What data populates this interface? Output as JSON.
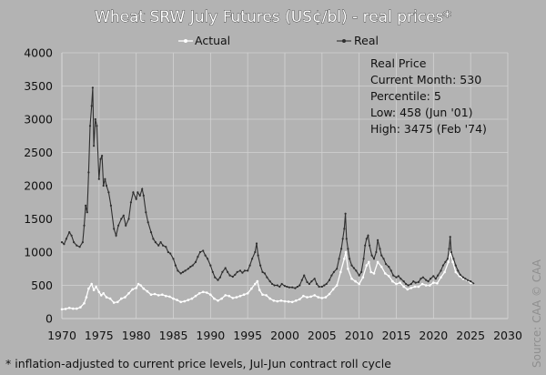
{
  "chart_data": {
    "type": "line",
    "title": "Wheat SRW July Futures (US¢/bl) - real prices*",
    "footnote": "* inflation-adjusted to current price levels, Jul-Jun contract roll cycle",
    "source": "Source: CAA  © CAA",
    "xlim": [
      1970,
      2030
    ],
    "ylim": [
      0,
      4000
    ],
    "x_ticks": [
      1970,
      1975,
      1980,
      1985,
      1990,
      1995,
      2000,
      2005,
      2010,
      2015,
      2020,
      2025,
      2030
    ],
    "y_ticks": [
      0,
      500,
      1000,
      1500,
      2000,
      2500,
      3000,
      3500,
      4000
    ],
    "grid": true,
    "legend_position": "top",
    "annotation": {
      "heading": "Real Price",
      "lines": [
        "Current Month: 530",
        "Percentile: 5",
        "Low: 458 (Jun '01)",
        "High: 3475 (Feb '74)"
      ]
    },
    "series": [
      {
        "name": "Actual",
        "color": "#ffffff",
        "points": [
          [
            1970.0,
            140
          ],
          [
            1970.5,
            145
          ],
          [
            1971.0,
            160
          ],
          [
            1971.5,
            150
          ],
          [
            1972.0,
            150
          ],
          [
            1972.5,
            170
          ],
          [
            1973.0,
            230
          ],
          [
            1973.3,
            320
          ],
          [
            1973.6,
            450
          ],
          [
            1974.0,
            520
          ],
          [
            1974.3,
            430
          ],
          [
            1974.6,
            480
          ],
          [
            1975.0,
            400
          ],
          [
            1975.3,
            350
          ],
          [
            1975.6,
            380
          ],
          [
            1976.0,
            320
          ],
          [
            1976.5,
            300
          ],
          [
            1977.0,
            240
          ],
          [
            1977.5,
            250
          ],
          [
            1978.0,
            300
          ],
          [
            1978.5,
            320
          ],
          [
            1979.0,
            380
          ],
          [
            1979.5,
            440
          ],
          [
            1980.0,
            460
          ],
          [
            1980.3,
            520
          ],
          [
            1980.6,
            500
          ],
          [
            1981.0,
            450
          ],
          [
            1981.5,
            410
          ],
          [
            1982.0,
            360
          ],
          [
            1982.5,
            370
          ],
          [
            1983.0,
            350
          ],
          [
            1983.5,
            360
          ],
          [
            1984.0,
            340
          ],
          [
            1984.5,
            330
          ],
          [
            1985.0,
            300
          ],
          [
            1985.5,
            280
          ],
          [
            1986.0,
            250
          ],
          [
            1986.5,
            260
          ],
          [
            1987.0,
            280
          ],
          [
            1987.5,
            300
          ],
          [
            1988.0,
            340
          ],
          [
            1988.5,
            380
          ],
          [
            1989.0,
            400
          ],
          [
            1989.5,
            390
          ],
          [
            1990.0,
            360
          ],
          [
            1990.5,
            300
          ],
          [
            1991.0,
            270
          ],
          [
            1991.5,
            300
          ],
          [
            1992.0,
            350
          ],
          [
            1992.5,
            340
          ],
          [
            1993.0,
            310
          ],
          [
            1993.5,
            320
          ],
          [
            1994.0,
            340
          ],
          [
            1994.5,
            360
          ],
          [
            1995.0,
            380
          ],
          [
            1995.5,
            450
          ],
          [
            1996.0,
            520
          ],
          [
            1996.3,
            560
          ],
          [
            1996.6,
            430
          ],
          [
            1997.0,
            360
          ],
          [
            1997.5,
            350
          ],
          [
            1998.0,
            300
          ],
          [
            1998.5,
            270
          ],
          [
            1999.0,
            260
          ],
          [
            1999.5,
            270
          ],
          [
            2000.0,
            260
          ],
          [
            2000.5,
            255
          ],
          [
            2001.0,
            250
          ],
          [
            2001.5,
            270
          ],
          [
            2002.0,
            290
          ],
          [
            2002.5,
            340
          ],
          [
            2003.0,
            320
          ],
          [
            2003.5,
            330
          ],
          [
            2004.0,
            350
          ],
          [
            2004.5,
            320
          ],
          [
            2005.0,
            310
          ],
          [
            2005.5,
            320
          ],
          [
            2006.0,
            370
          ],
          [
            2006.5,
            440
          ],
          [
            2007.0,
            500
          ],
          [
            2007.5,
            700
          ],
          [
            2008.0,
            900
          ],
          [
            2008.2,
            1000
          ],
          [
            2008.5,
            750
          ],
          [
            2009.0,
            600
          ],
          [
            2009.5,
            560
          ],
          [
            2010.0,
            520
          ],
          [
            2010.5,
            620
          ],
          [
            2011.0,
            800
          ],
          [
            2011.3,
            850
          ],
          [
            2011.6,
            700
          ],
          [
            2012.0,
            680
          ],
          [
            2012.5,
            850
          ],
          [
            2013.0,
            780
          ],
          [
            2013.5,
            680
          ],
          [
            2014.0,
            640
          ],
          [
            2014.5,
            560
          ],
          [
            2015.0,
            520
          ],
          [
            2015.5,
            540
          ],
          [
            2016.0,
            480
          ],
          [
            2016.5,
            440
          ],
          [
            2017.0,
            460
          ],
          [
            2017.5,
            480
          ],
          [
            2018.0,
            480
          ],
          [
            2018.5,
            520
          ],
          [
            2019.0,
            500
          ],
          [
            2019.5,
            500
          ],
          [
            2020.0,
            540
          ],
          [
            2020.5,
            530
          ],
          [
            2021.0,
            620
          ],
          [
            2021.5,
            700
          ],
          [
            2022.0,
            850
          ],
          [
            2022.3,
            1000
          ],
          [
            2022.6,
            850
          ],
          [
            2023.0,
            700
          ],
          [
            2023.5,
            640
          ],
          [
            2024.0,
            600
          ],
          [
            2024.5,
            580
          ],
          [
            2025.0,
            540
          ],
          [
            2025.4,
            530
          ]
        ]
      },
      {
        "name": "Real",
        "color": "#2f2f2f",
        "points": [
          [
            1970.0,
            1150
          ],
          [
            1970.3,
            1120
          ],
          [
            1970.6,
            1200
          ],
          [
            1971.0,
            1300
          ],
          [
            1971.3,
            1250
          ],
          [
            1971.6,
            1150
          ],
          [
            1972.0,
            1100
          ],
          [
            1972.4,
            1080
          ],
          [
            1972.8,
            1150
          ],
          [
            1973.0,
            1400
          ],
          [
            1973.2,
            1700
          ],
          [
            1973.4,
            1600
          ],
          [
            1973.6,
            2200
          ],
          [
            1973.8,
            2900
          ],
          [
            1974.0,
            3200
          ],
          [
            1974.15,
            3475
          ],
          [
            1974.3,
            2600
          ],
          [
            1974.5,
            3000
          ],
          [
            1974.7,
            2900
          ],
          [
            1975.0,
            2100
          ],
          [
            1975.2,
            2400
          ],
          [
            1975.4,
            2450
          ],
          [
            1975.6,
            2000
          ],
          [
            1975.8,
            2100
          ],
          [
            1976.0,
            2000
          ],
          [
            1976.3,
            1900
          ],
          [
            1976.6,
            1700
          ],
          [
            1977.0,
            1350
          ],
          [
            1977.3,
            1250
          ],
          [
            1977.6,
            1400
          ],
          [
            1978.0,
            1500
          ],
          [
            1978.3,
            1550
          ],
          [
            1978.6,
            1400
          ],
          [
            1979.0,
            1500
          ],
          [
            1979.3,
            1750
          ],
          [
            1979.6,
            1900
          ],
          [
            1980.0,
            1800
          ],
          [
            1980.2,
            1900
          ],
          [
            1980.5,
            1850
          ],
          [
            1980.8,
            1950
          ],
          [
            1981.0,
            1850
          ],
          [
            1981.3,
            1600
          ],
          [
            1981.6,
            1450
          ],
          [
            1982.0,
            1300
          ],
          [
            1982.3,
            1200
          ],
          [
            1982.6,
            1150
          ],
          [
            1983.0,
            1100
          ],
          [
            1983.3,
            1150
          ],
          [
            1983.6,
            1100
          ],
          [
            1984.0,
            1080
          ],
          [
            1984.3,
            1000
          ],
          [
            1984.6,
            980
          ],
          [
            1985.0,
            900
          ],
          [
            1985.3,
            800
          ],
          [
            1985.6,
            720
          ],
          [
            1986.0,
            680
          ],
          [
            1986.3,
            700
          ],
          [
            1986.6,
            720
          ],
          [
            1987.0,
            750
          ],
          [
            1987.3,
            780
          ],
          [
            1987.6,
            800
          ],
          [
            1988.0,
            850
          ],
          [
            1988.3,
            930
          ],
          [
            1988.6,
            1000
          ],
          [
            1989.0,
            1020
          ],
          [
            1989.3,
            950
          ],
          [
            1989.6,
            900
          ],
          [
            1990.0,
            800
          ],
          [
            1990.3,
            700
          ],
          [
            1990.6,
            620
          ],
          [
            1991.0,
            580
          ],
          [
            1991.3,
            620
          ],
          [
            1991.6,
            700
          ],
          [
            1992.0,
            760
          ],
          [
            1992.3,
            700
          ],
          [
            1992.6,
            650
          ],
          [
            1993.0,
            630
          ],
          [
            1993.3,
            660
          ],
          [
            1993.6,
            700
          ],
          [
            1994.0,
            720
          ],
          [
            1994.3,
            690
          ],
          [
            1994.6,
            720
          ],
          [
            1995.0,
            720
          ],
          [
            1995.3,
            800
          ],
          [
            1995.6,
            900
          ],
          [
            1996.0,
            1000
          ],
          [
            1996.2,
            1130
          ],
          [
            1996.4,
            950
          ],
          [
            1996.7,
            800
          ],
          [
            1997.0,
            700
          ],
          [
            1997.3,
            680
          ],
          [
            1997.6,
            620
          ],
          [
            1998.0,
            560
          ],
          [
            1998.3,
            520
          ],
          [
            1998.6,
            500
          ],
          [
            1999.0,
            500
          ],
          [
            1999.3,
            480
          ],
          [
            1999.6,
            520
          ],
          [
            2000.0,
            490
          ],
          [
            2000.3,
            480
          ],
          [
            2000.6,
            470
          ],
          [
            2001.0,
            470
          ],
          [
            2001.4,
            458
          ],
          [
            2001.7,
            480
          ],
          [
            2002.0,
            500
          ],
          [
            2002.3,
            580
          ],
          [
            2002.6,
            650
          ],
          [
            2003.0,
            550
          ],
          [
            2003.3,
            520
          ],
          [
            2003.6,
            560
          ],
          [
            2004.0,
            600
          ],
          [
            2004.3,
            520
          ],
          [
            2004.6,
            480
          ],
          [
            2005.0,
            480
          ],
          [
            2005.3,
            500
          ],
          [
            2005.6,
            520
          ],
          [
            2006.0,
            580
          ],
          [
            2006.3,
            650
          ],
          [
            2006.6,
            700
          ],
          [
            2007.0,
            750
          ],
          [
            2007.3,
            900
          ],
          [
            2007.6,
            1050
          ],
          [
            2007.8,
            1200
          ],
          [
            2008.0,
            1350
          ],
          [
            2008.15,
            1580
          ],
          [
            2008.3,
            1200
          ],
          [
            2008.5,
            1050
          ],
          [
            2008.7,
            900
          ],
          [
            2009.0,
            800
          ],
          [
            2009.3,
            760
          ],
          [
            2009.6,
            720
          ],
          [
            2010.0,
            650
          ],
          [
            2010.3,
            700
          ],
          [
            2010.6,
            900
          ],
          [
            2010.8,
            1100
          ],
          [
            2011.0,
            1200
          ],
          [
            2011.2,
            1250
          ],
          [
            2011.4,
            1100
          ],
          [
            2011.7,
            950
          ],
          [
            2012.0,
            900
          ],
          [
            2012.3,
            1000
          ],
          [
            2012.5,
            1180
          ],
          [
            2012.8,
            1050
          ],
          [
            2013.0,
            950
          ],
          [
            2013.3,
            900
          ],
          [
            2013.6,
            820
          ],
          [
            2014.0,
            780
          ],
          [
            2014.3,
            720
          ],
          [
            2014.6,
            650
          ],
          [
            2015.0,
            620
          ],
          [
            2015.3,
            640
          ],
          [
            2015.6,
            600
          ],
          [
            2016.0,
            560
          ],
          [
            2016.3,
            520
          ],
          [
            2016.6,
            500
          ],
          [
            2017.0,
            520
          ],
          [
            2017.3,
            560
          ],
          [
            2017.6,
            540
          ],
          [
            2018.0,
            550
          ],
          [
            2018.3,
            600
          ],
          [
            2018.6,
            620
          ],
          [
            2019.0,
            580
          ],
          [
            2019.3,
            560
          ],
          [
            2019.6,
            600
          ],
          [
            2020.0,
            640
          ],
          [
            2020.3,
            600
          ],
          [
            2020.6,
            650
          ],
          [
            2021.0,
            720
          ],
          [
            2021.3,
            800
          ],
          [
            2021.6,
            850
          ],
          [
            2021.9,
            900
          ],
          [
            2022.1,
            1050
          ],
          [
            2022.25,
            1230
          ],
          [
            2022.4,
            1000
          ],
          [
            2022.7,
            900
          ],
          [
            2023.0,
            800
          ],
          [
            2023.3,
            720
          ],
          [
            2023.6,
            660
          ],
          [
            2024.0,
            620
          ],
          [
            2024.3,
            600
          ],
          [
            2024.6,
            580
          ],
          [
            2025.0,
            560
          ],
          [
            2025.4,
            530
          ]
        ]
      }
    ]
  }
}
